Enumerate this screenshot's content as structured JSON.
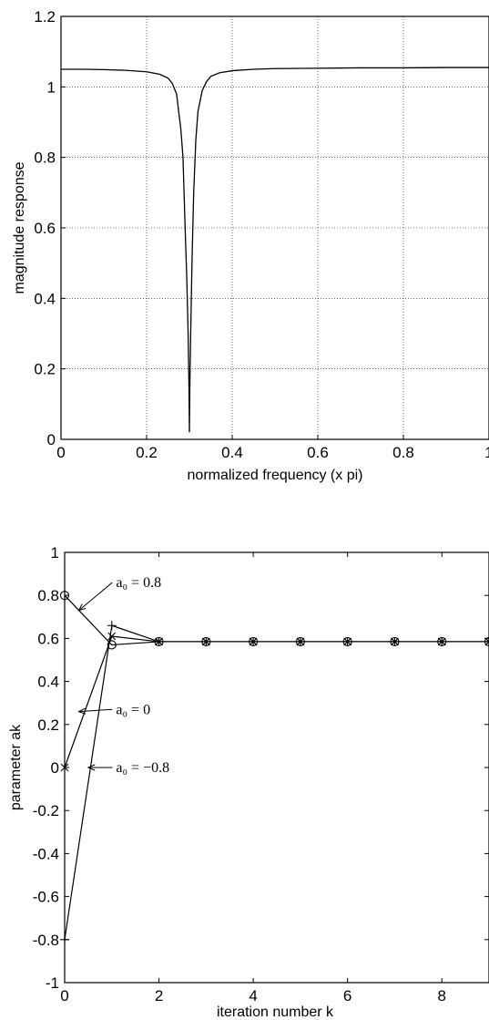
{
  "chart_data": [
    {
      "type": "line",
      "xlabel": "normalized frequency (x pi)",
      "ylabel": "magnitude response",
      "xlim": [
        0,
        1
      ],
      "ylim": [
        0,
        1.2
      ],
      "xticks": [
        "0",
        "0.2",
        "0.4",
        "0.6",
        "0.8",
        "1"
      ],
      "yticks": [
        "0",
        "0.2",
        "0.4",
        "0.6",
        "0.8",
        "1",
        "1.2"
      ],
      "grid": true,
      "series": [
        {
          "x": [
            0,
            0.05,
            0.1,
            0.15,
            0.2,
            0.23,
            0.25,
            0.26,
            0.27,
            0.28,
            0.285,
            0.29,
            0.294,
            0.297,
            0.299,
            0.3,
            0.301,
            0.303,
            0.306,
            0.31,
            0.315,
            0.32,
            0.33,
            0.34,
            0.35,
            0.37,
            0.4,
            0.45,
            0.5,
            0.6,
            0.7,
            0.8,
            0.9,
            1
          ],
          "y": [
            1.05,
            1.05,
            1.049,
            1.047,
            1.043,
            1.036,
            1.025,
            1.01,
            0.98,
            0.88,
            0.8,
            0.6,
            0.45,
            0.3,
            0.15,
            0.02,
            0.15,
            0.3,
            0.5,
            0.7,
            0.85,
            0.93,
            0.99,
            1.015,
            1.03,
            1.04,
            1.046,
            1.05,
            1.052,
            1.053,
            1.054,
            1.054,
            1.055,
            1.055
          ]
        }
      ]
    },
    {
      "type": "line",
      "xlabel": "iteration number k",
      "ylabel": "parameter ak",
      "xlim": [
        0,
        9
      ],
      "ylim": [
        -1,
        1
      ],
      "xticks": [
        "0",
        "2",
        "4",
        "6",
        "8"
      ],
      "yticks": [
        "-1",
        "-0.8",
        "-0.6",
        "-0.4",
        "-0.2",
        "0",
        "0.2",
        "0.4",
        "0.6",
        "0.8",
        "1"
      ],
      "grid": false,
      "series": [
        {
          "marker": "o",
          "x": [
            0,
            1,
            2,
            3,
            4,
            5,
            6,
            7,
            8,
            9
          ],
          "y": [
            0.8,
            0.57,
            0.585,
            0.585,
            0.585,
            0.585,
            0.585,
            0.585,
            0.585,
            0.585
          ]
        },
        {
          "marker": "x",
          "x": [
            0,
            1,
            2,
            3,
            4,
            5,
            6,
            7,
            8,
            9
          ],
          "y": [
            0,
            0.61,
            0.585,
            0.585,
            0.585,
            0.585,
            0.585,
            0.585,
            0.585,
            0.585
          ]
        },
        {
          "marker": "+",
          "x": [
            0,
            1,
            2,
            3,
            4,
            5,
            6,
            7,
            8,
            9
          ],
          "y": [
            -0.8,
            0.66,
            0.585,
            0.585,
            0.585,
            0.585,
            0.585,
            0.585,
            0.585,
            0.585
          ]
        }
      ],
      "annotations": [
        {
          "text": "a₀ = 0.8",
          "x_text": 1.05,
          "y_text": 0.86,
          "x_target": 0.3,
          "y_target": 0.73
        },
        {
          "text": "a₀ = 0",
          "x_text": 1.05,
          "y_text": 0.27,
          "x_target": 0.3,
          "y_target": 0.26
        },
        {
          "text": "a₀ = −0.8",
          "x_text": 1.05,
          "y_text": 0.0,
          "x_target": 0.5,
          "y_target": 0.0
        }
      ]
    }
  ]
}
